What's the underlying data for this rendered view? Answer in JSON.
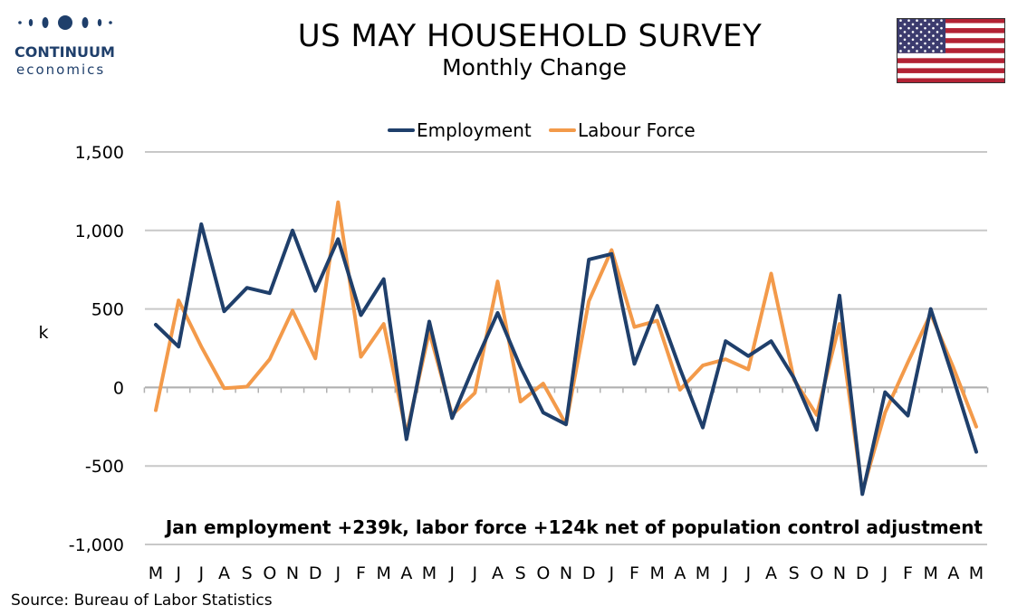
{
  "logo": {
    "brand": "CONTINUUM",
    "sub": "economics",
    "color": "#1f3f6b"
  },
  "header": {
    "title": "US MAY HOUSEHOLD SURVEY",
    "subtitle": "Monthly Change",
    "flag_icon": "us-flag-icon"
  },
  "chart_data": {
    "type": "line",
    "categories": [
      "M",
      "J",
      "J",
      "A",
      "S",
      "O",
      "N",
      "D",
      "J",
      "F",
      "M",
      "A",
      "M",
      "J",
      "J",
      "A",
      "S",
      "O",
      "N",
      "D",
      "J",
      "F",
      "M",
      "A",
      "M",
      "J",
      "J",
      "A",
      "S",
      "O",
      "N",
      "D",
      "J",
      "F",
      "M",
      "A",
      "M"
    ],
    "series": [
      {
        "name": "Employment",
        "color": "#1f3f6b",
        "values": [
          400,
          260,
          1040,
          485,
          635,
          600,
          1000,
          615,
          945,
          460,
          690,
          -330,
          420,
          -195,
          150,
          475,
          130,
          -160,
          -235,
          815,
          850,
          150,
          520,
          120,
          -255,
          295,
          200,
          295,
          60,
          -270,
          585,
          -680,
          -30,
          -180,
          500,
          55,
          -410
        ]
      },
      {
        "name": "Labour Force",
        "color": "#f39a4a",
        "values": [
          -145,
          555,
          260,
          -5,
          5,
          180,
          490,
          185,
          1180,
          195,
          405,
          -295,
          355,
          -175,
          -35,
          675,
          -90,
          25,
          -235,
          550,
          875,
          385,
          425,
          -15,
          140,
          180,
          115,
          725,
          50,
          -175,
          405,
          -665,
          -160,
          160,
          470,
          125,
          -250
        ]
      }
    ],
    "ylabel": "k",
    "ylim": [
      -1000,
      1500
    ],
    "yticks": [
      -1000,
      -500,
      0,
      500,
      1000,
      1500
    ],
    "ytick_labels": [
      "-1,000",
      "-500",
      "0",
      "500",
      "1,000",
      "1,500"
    ],
    "grid": true,
    "legend_position": "top-center",
    "annotation": "Jan employment +239k, labor force +124k net of population control adjustment"
  },
  "source": "Source: Bureau of Labor Statistics"
}
